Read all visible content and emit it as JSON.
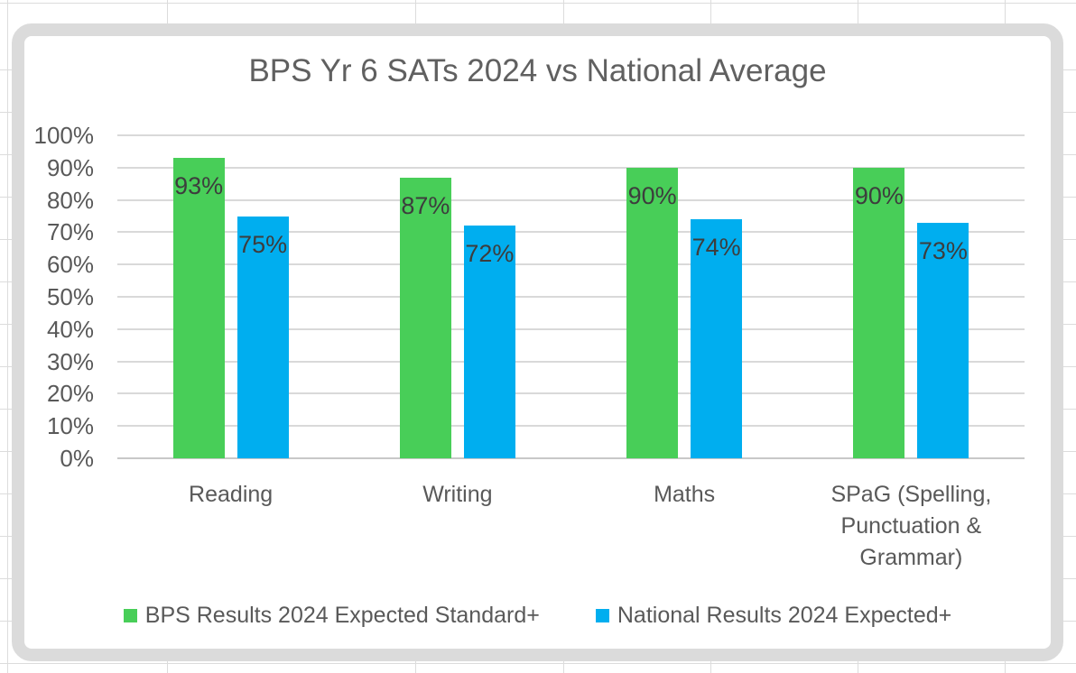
{
  "chart_data": {
    "type": "bar",
    "title": "BPS Yr 6 SATs 2024 vs National Average",
    "categories": [
      "Reading",
      "Writing",
      "Maths",
      "SPaG (Spelling, Punctuation & Grammar)"
    ],
    "series": [
      {
        "name": "BPS Results 2024 Expected Standard+",
        "color": "#48CE58",
        "values": [
          93,
          87,
          90,
          90
        ]
      },
      {
        "name": "National Results 2024 Expected+",
        "color": "#00AEEF",
        "values": [
          75,
          72,
          74,
          73
        ]
      }
    ],
    "data_labels": [
      "93%",
      "75%",
      "87%",
      "72%",
      "90%",
      "74%",
      "90%",
      "73%"
    ],
    "value_suffix": "%",
    "ylim": [
      0,
      100
    ],
    "ytick_step": 10,
    "ytick_labels": [
      "0%",
      "10%",
      "20%",
      "30%",
      "40%",
      "50%",
      "60%",
      "70%",
      "80%",
      "90%",
      "100%"
    ],
    "xlabel": "",
    "ylabel": "",
    "grid": "horizontal",
    "legend_position": "bottom",
    "data_label_position": "inside-top",
    "colors": {
      "series1": "#48CE58",
      "series2": "#00AEEF",
      "gridline": "#D9D9D9",
      "frame_border": "#DBDBDB",
      "title_text": "#606060",
      "axis_text": "#595959",
      "data_label_text": "#3D3D3D"
    }
  }
}
